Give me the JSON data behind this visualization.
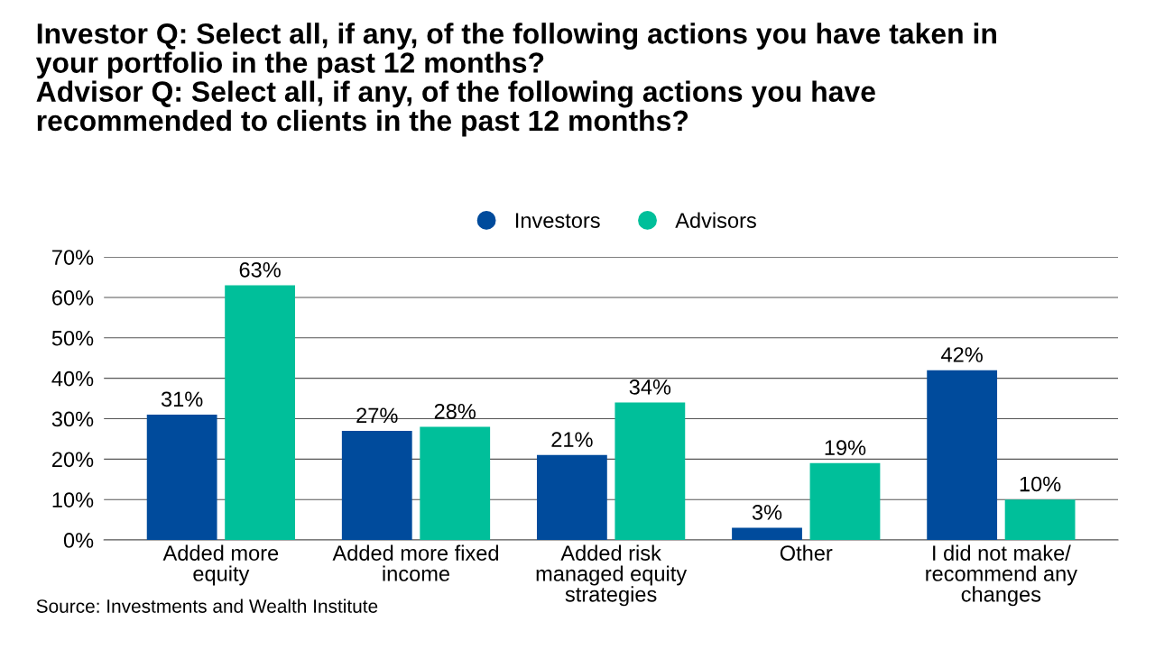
{
  "chart_data": {
    "type": "bar",
    "title": "Investor Q: Select all, if any, of the following actions you have taken in\nyour portfolio in the past 12 months?\nAdvisor Q: Select all, if any, of the following actions you have\nrecommended to clients in the past 12 months?",
    "categories": [
      "Added more\nequity",
      "Added more fixed\nincome",
      "Added risk\nmanaged equity\nstrategies",
      "Other",
      "I did not make/\nrecommend any\nchanges"
    ],
    "series": [
      {
        "name": "Investors",
        "color": "#004b9c",
        "values": [
          31,
          27,
          21,
          3,
          42
        ],
        "value_labels": [
          "31%",
          "27%",
          "21%",
          "3%",
          "42%"
        ]
      },
      {
        "name": "Advisors",
        "color": "#00bf9a",
        "values": [
          63,
          28,
          34,
          19,
          10
        ],
        "value_labels": [
          "63%",
          "28%",
          "34%",
          "19%",
          "10%"
        ]
      }
    ],
    "ylim": [
      0,
      70
    ],
    "yticks": [
      {
        "value": 0,
        "label": "0%"
      },
      {
        "value": 10,
        "label": "10%"
      },
      {
        "value": 20,
        "label": "20%"
      },
      {
        "value": 30,
        "label": "30%"
      },
      {
        "value": 40,
        "label": "40%"
      },
      {
        "value": 50,
        "label": "50%"
      },
      {
        "value": 60,
        "label": "60%"
      },
      {
        "value": 70,
        "label": "70%"
      }
    ],
    "grid": "y",
    "legend": "top",
    "annotations": [
      "Source: Investments and Wealth Institute"
    ]
  }
}
